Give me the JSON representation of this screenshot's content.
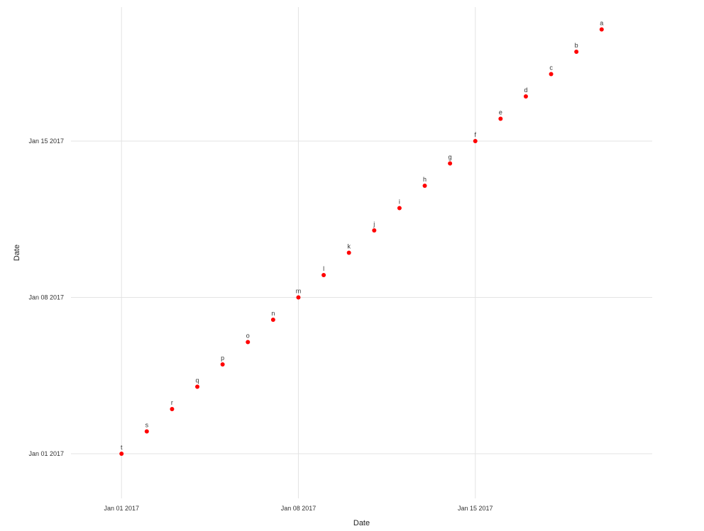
{
  "chart_data": {
    "type": "scatter",
    "title": "",
    "xlabel": "Date",
    "ylabel": "Date",
    "x_ticks": [
      "Jan 01 2017",
      "Jan 08 2017",
      "Jan 15 2017"
    ],
    "y_ticks": [
      "Jan 01 2017",
      "Jan 08 2017",
      "Jan 15 2017"
    ],
    "xlim": [
      "2016-12-30",
      "2017-01-22"
    ],
    "ylim": [
      "2016-12-30",
      "2017-01-21"
    ],
    "grid": true,
    "legend": "none",
    "point_color": "#ff0000",
    "points": [
      {
        "label": "t",
        "x": "2017-01-01",
        "y": "2017-01-01"
      },
      {
        "label": "s",
        "x": "2017-01-02",
        "y": "2017-01-02"
      },
      {
        "label": "r",
        "x": "2017-01-03",
        "y": "2017-01-03"
      },
      {
        "label": "q",
        "x": "2017-01-04",
        "y": "2017-01-04"
      },
      {
        "label": "p",
        "x": "2017-01-05",
        "y": "2017-01-05"
      },
      {
        "label": "o",
        "x": "2017-01-06",
        "y": "2017-01-06"
      },
      {
        "label": "n",
        "x": "2017-01-07",
        "y": "2017-01-07"
      },
      {
        "label": "m",
        "x": "2017-01-08",
        "y": "2017-01-08"
      },
      {
        "label": "l",
        "x": "2017-01-09",
        "y": "2017-01-09"
      },
      {
        "label": "k",
        "x": "2017-01-10",
        "y": "2017-01-10"
      },
      {
        "label": "j",
        "x": "2017-01-11",
        "y": "2017-01-11"
      },
      {
        "label": "i",
        "x": "2017-01-12",
        "y": "2017-01-12"
      },
      {
        "label": "h",
        "x": "2017-01-13",
        "y": "2017-01-13"
      },
      {
        "label": "g",
        "x": "2017-01-14",
        "y": "2017-01-14"
      },
      {
        "label": "f",
        "x": "2017-01-15",
        "y": "2017-01-15"
      },
      {
        "label": "e",
        "x": "2017-01-16",
        "y": "2017-01-16"
      },
      {
        "label": "d",
        "x": "2017-01-17",
        "y": "2017-01-17"
      },
      {
        "label": "c",
        "x": "2017-01-18",
        "y": "2017-01-18"
      },
      {
        "label": "b",
        "x": "2017-01-19",
        "y": "2017-01-19"
      },
      {
        "label": "a",
        "x": "2017-01-20",
        "y": "2017-01-20"
      }
    ]
  }
}
